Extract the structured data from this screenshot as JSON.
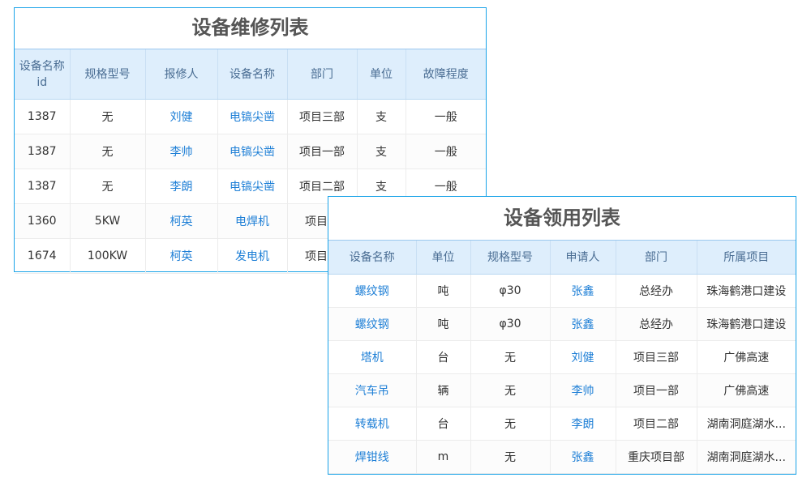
{
  "repair": {
    "title": "设备维修列表",
    "headers": [
      "设备名称id",
      "规格型号",
      "报修人",
      "设备名称",
      "部门",
      "单位",
      "故障程度"
    ],
    "rows": [
      [
        "1387",
        "无",
        "刘健",
        "电镐尖凿",
        "项目三部",
        "支",
        "一般"
      ],
      [
        "1387",
        "无",
        "李帅",
        "电镐尖凿",
        "项目一部",
        "支",
        "一般"
      ],
      [
        "1387",
        "无",
        "李朗",
        "电镐尖凿",
        "项目二部",
        "支",
        "一般"
      ],
      [
        "1360",
        "5KW",
        "柯英",
        "电焊机",
        "项目一",
        "",
        ""
      ],
      [
        "1674",
        "100KW",
        "柯英",
        "发电机",
        "项目一",
        "",
        ""
      ]
    ]
  },
  "requisition": {
    "title": "设备领用列表",
    "headers": [
      "设备名称",
      "单位",
      "规格型号",
      "申请人",
      "部门",
      "所属项目"
    ],
    "rows": [
      [
        "螺纹钢",
        "吨",
        "φ30",
        "张鑫",
        "总经办",
        "珠海鹤港口建设"
      ],
      [
        "螺纹钢",
        "吨",
        "φ30",
        "张鑫",
        "总经办",
        "珠海鹤港口建设"
      ],
      [
        "塔机",
        "台",
        "无",
        "刘健",
        "项目三部",
        "广佛高速"
      ],
      [
        "汽车吊",
        "辆",
        "无",
        "李帅",
        "项目一部",
        "广佛高速"
      ],
      [
        "转载机",
        "台",
        "无",
        "李朗",
        "项目二部",
        "湖南洞庭湖水..."
      ],
      [
        "焊钳线",
        "m",
        "无",
        "张鑫",
        "重庆项目部",
        "湖南洞庭湖水..."
      ]
    ]
  },
  "colors": {
    "border": "#1aa3e8",
    "header_bg": "#deeefc",
    "link": "#1e7fd6"
  }
}
